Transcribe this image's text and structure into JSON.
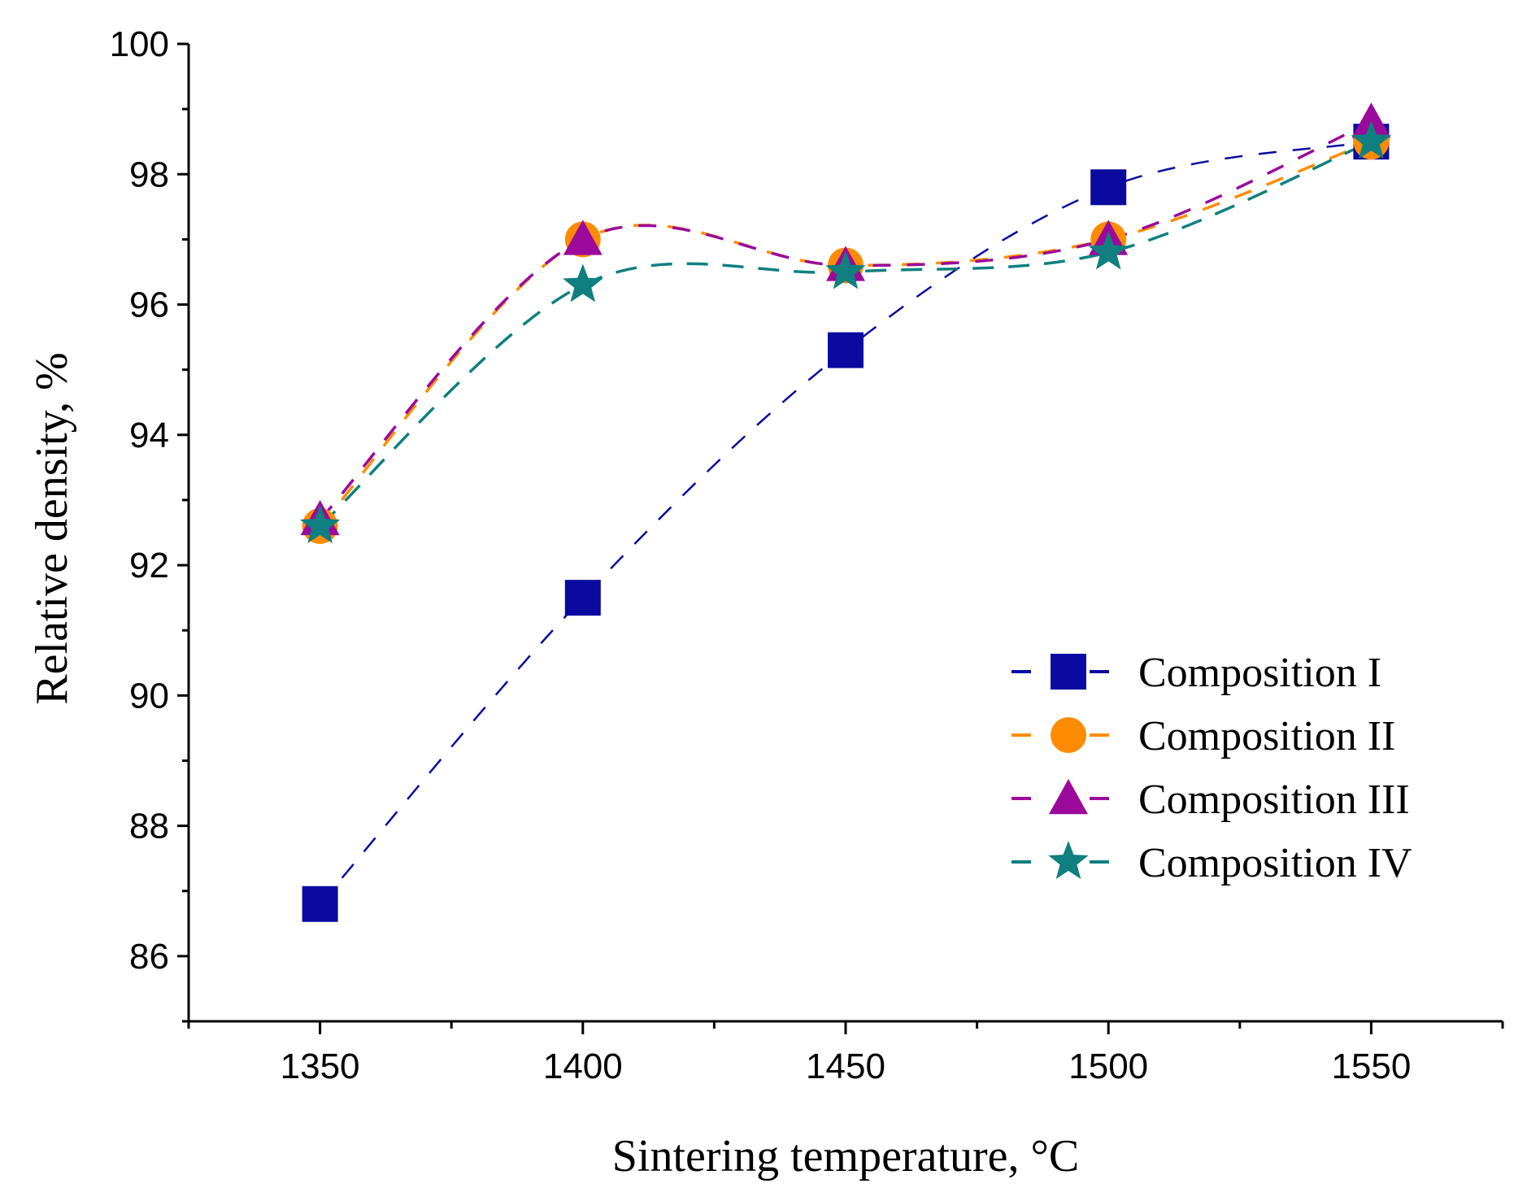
{
  "chart_data": {
    "type": "line",
    "title": "",
    "xlabel": "Sintering temperature, ",
    "xlabel_unit": "°C",
    "ylabel": "Relative density, %",
    "x": [
      1350,
      1400,
      1450,
      1500,
      1550
    ],
    "xlim": [
      1325,
      1575
    ],
    "ylim": [
      85,
      100
    ],
    "x_ticks": [
      "1350",
      "1400",
      "1450",
      "1500",
      "1550"
    ],
    "y_ticks": [
      "86",
      "88",
      "90",
      "92",
      "94",
      "96",
      "98",
      "100"
    ],
    "grid": false,
    "legend_position": "lower-right",
    "series": [
      {
        "name": "Composition I",
        "values": [
          86.8,
          91.5,
          95.3,
          97.8,
          98.5
        ],
        "color": "#0a0aa0",
        "marker": "square"
      },
      {
        "name": "Composition II",
        "values": [
          92.6,
          97.0,
          96.6,
          97.0,
          98.5
        ],
        "color": "#ff8c00",
        "marker": "circle"
      },
      {
        "name": "Composition III",
        "values": [
          92.7,
          97.0,
          96.6,
          97.0,
          98.8
        ],
        "color": "#9b0a9b",
        "marker": "triangle"
      },
      {
        "name": "Composition IV",
        "values": [
          92.6,
          96.3,
          96.5,
          96.8,
          98.5
        ],
        "color": "#0f7f7f",
        "marker": "star"
      }
    ]
  }
}
